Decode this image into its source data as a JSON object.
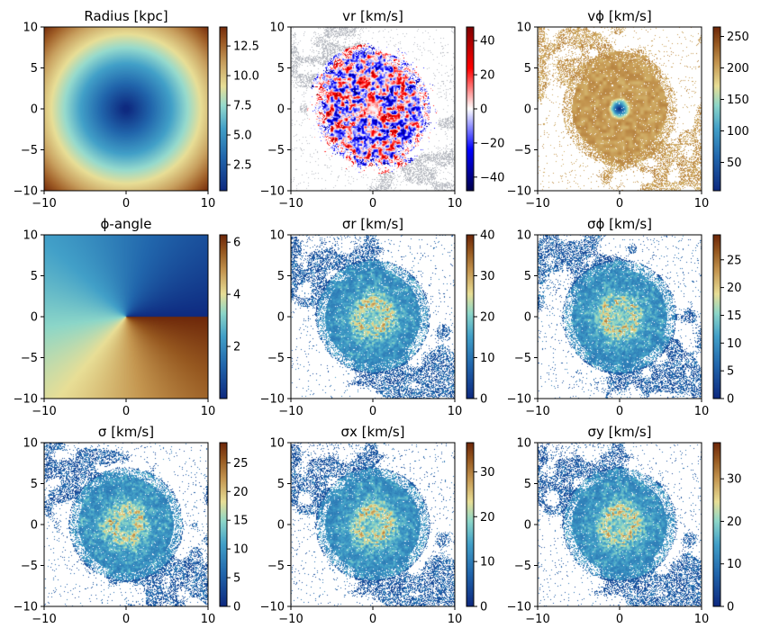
{
  "chart_data": [
    {
      "type": "heatmap",
      "title": "Radius [kpc]",
      "field": "radius",
      "xlim": [
        -10,
        10
      ],
      "ylim": [
        -10,
        10
      ],
      "xticks": [
        "−10",
        "0",
        "10"
      ],
      "yticks": [
        "10",
        "5",
        "0",
        "−5",
        "−10"
      ],
      "colorbar": {
        "cmap": "radius",
        "range": [
          0.3,
          14.1
        ],
        "ticks": [
          "12.5",
          "10.0",
          "7.5",
          "5.0",
          "2.5"
        ],
        "tick_values": [
          12.5,
          10.0,
          7.5,
          5.0,
          2.5
        ]
      }
    },
    {
      "type": "heatmap",
      "title": "vr [km/s]",
      "field": "vr",
      "xlim": [
        -10,
        10
      ],
      "ylim": [
        -10,
        10
      ],
      "xticks": [
        "−10",
        "0",
        "10"
      ],
      "yticks": [
        "10",
        "5",
        "0",
        "−5",
        "−10"
      ],
      "colorbar": {
        "cmap": "seismic",
        "range": [
          -48,
          48
        ],
        "ticks": [
          "40",
          "20",
          "0",
          "−20",
          "−40"
        ],
        "tick_values": [
          40,
          20,
          0,
          -20,
          -40
        ]
      }
    },
    {
      "type": "heatmap",
      "title": "vϕ [km/s]",
      "field": "vphi",
      "xlim": [
        -10,
        10
      ],
      "ylim": [
        -10,
        10
      ],
      "xticks": [
        "−10",
        "0",
        "10"
      ],
      "yticks": [
        "10",
        "5",
        "0",
        "−5",
        "−10"
      ],
      "colorbar": {
        "cmap": "ylgnbu_brown",
        "range": [
          5,
          265
        ],
        "ticks": [
          "250",
          "200",
          "150",
          "100",
          "50"
        ],
        "tick_values": [
          250,
          200,
          150,
          100,
          50
        ]
      }
    },
    {
      "type": "heatmap",
      "title": "ϕ-angle",
      "field": "phi",
      "xlim": [
        -10,
        10
      ],
      "ylim": [
        -10,
        10
      ],
      "xticks": [
        "−10",
        "0",
        "10"
      ],
      "yticks": [
        "10",
        "5",
        "0",
        "−5",
        "−10"
      ],
      "colorbar": {
        "cmap": "ylgnbu_brown",
        "range": [
          0,
          6.283
        ],
        "ticks": [
          "6",
          "4",
          "2"
        ],
        "tick_values": [
          6,
          4,
          2
        ]
      }
    },
    {
      "type": "heatmap",
      "title": "σr [km/s]",
      "field": "sigma_r",
      "xlim": [
        -10,
        10
      ],
      "ylim": [
        -10,
        10
      ],
      "xticks": [
        "−10",
        "0",
        "10"
      ],
      "yticks": [
        "10",
        "5",
        "0",
        "−5",
        "−10"
      ],
      "colorbar": {
        "cmap": "ylgnbu_brown",
        "range": [
          0,
          40
        ],
        "ticks": [
          "40",
          "30",
          "20",
          "10",
          "0"
        ],
        "tick_values": [
          40,
          30,
          20,
          10,
          0
        ]
      }
    },
    {
      "type": "heatmap",
      "title": "σϕ [km/s]",
      "field": "sigma_phi",
      "xlim": [
        -10,
        10
      ],
      "ylim": [
        -10,
        10
      ],
      "xticks": [
        "−10",
        "0",
        "10"
      ],
      "yticks": [
        "10",
        "5",
        "0",
        "−5",
        "−10"
      ],
      "colorbar": {
        "cmap": "ylgnbu_brown",
        "range": [
          0,
          29.5
        ],
        "ticks": [
          "25",
          "20",
          "15",
          "10",
          "5",
          "0"
        ],
        "tick_values": [
          25,
          20,
          15,
          10,
          5,
          0
        ]
      }
    },
    {
      "type": "heatmap",
      "title": "σ [km/s]",
      "field": "sigma",
      "xlim": [
        -10,
        10
      ],
      "ylim": [
        -10,
        10
      ],
      "xticks": [
        "−10",
        "0",
        "10"
      ],
      "yticks": [
        "10",
        "5",
        "0",
        "−5",
        "−10"
      ],
      "colorbar": {
        "cmap": "ylgnbu_brown",
        "range": [
          0,
          28.5
        ],
        "ticks": [
          "25",
          "20",
          "15",
          "10",
          "5",
          "0"
        ],
        "tick_values": [
          25,
          20,
          15,
          10,
          5,
          0
        ]
      }
    },
    {
      "type": "heatmap",
      "title": "σx [km/s]",
      "field": "sigma_x",
      "xlim": [
        -10,
        10
      ],
      "ylim": [
        -10,
        10
      ],
      "xticks": [
        "−10",
        "0",
        "10"
      ],
      "yticks": [
        "10",
        "5",
        "0",
        "−5",
        "−10"
      ],
      "colorbar": {
        "cmap": "ylgnbu_brown",
        "range": [
          0,
          36.5
        ],
        "ticks": [
          "30",
          "20",
          "10",
          "0"
        ],
        "tick_values": [
          30,
          20,
          10,
          0
        ]
      }
    },
    {
      "type": "heatmap",
      "title": "σy [km/s]",
      "field": "sigma_y",
      "xlim": [
        -10,
        10
      ],
      "ylim": [
        -10,
        10
      ],
      "xticks": [
        "−10",
        "0",
        "10"
      ],
      "yticks": [
        "10",
        "5",
        "0",
        "−5",
        "−10"
      ],
      "colorbar": {
        "cmap": "ylgnbu_brown",
        "range": [
          0,
          38.5
        ],
        "ticks": [
          "30",
          "20",
          "10",
          "0"
        ],
        "tick_values": [
          30,
          20,
          10,
          0
        ]
      }
    }
  ]
}
